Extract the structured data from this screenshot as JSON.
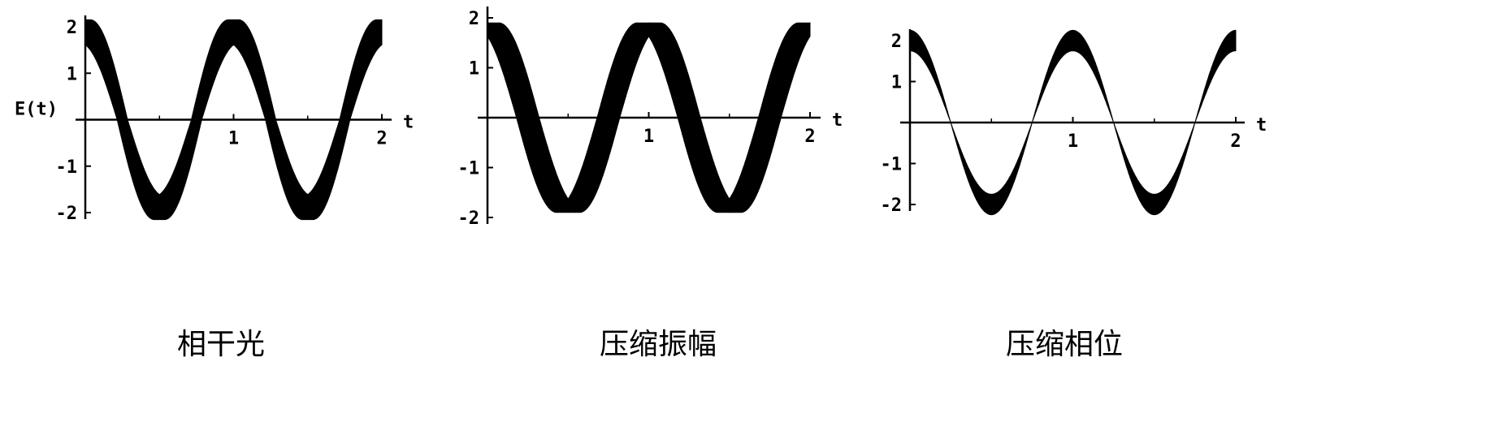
{
  "chart_data": [
    {
      "type": "line",
      "title": "相干光",
      "xlabel": "t",
      "ylabel": "E(t)",
      "xlim": [
        0,
        2
      ],
      "ylim": [
        -2,
        2
      ],
      "x_ticks": [
        "1",
        "2"
      ],
      "y_ticks": [
        "2",
        "1",
        "-1",
        "-2"
      ],
      "band": {
        "period": 1,
        "phase": 0,
        "mean_amplitude": 1.9,
        "amplitude_spread": 0.25,
        "phase_spread": 0.035
      },
      "grid": false,
      "color": "#000000"
    },
    {
      "type": "line",
      "title": "压缩振幅",
      "xlabel": "t",
      "ylabel": "",
      "xlim": [
        0,
        2
      ],
      "ylim": [
        -2,
        2
      ],
      "x_ticks": [
        "1",
        "2"
      ],
      "y_ticks": [
        "2",
        "1",
        "-1",
        "-2"
      ],
      "band": {
        "period": 1,
        "phase": 0,
        "mean_amplitude": 1.85,
        "amplitude_spread": 0.05,
        "phase_spread": 0.07
      },
      "grid": false,
      "color": "#000000"
    },
    {
      "type": "line",
      "title": "压缩相位",
      "xlabel": "t",
      "ylabel": "",
      "xlim": [
        0,
        2
      ],
      "ylim": [
        -2,
        2
      ],
      "x_ticks": [
        "1",
        "2"
      ],
      "y_ticks": [
        "2",
        "1",
        "-1",
        "-2"
      ],
      "band": {
        "period": 1,
        "phase": 0,
        "mean_amplitude": 2.0,
        "amplitude_spread": 0.25,
        "phase_spread": 0.0
      },
      "grid": false,
      "color": "#000000"
    }
  ]
}
